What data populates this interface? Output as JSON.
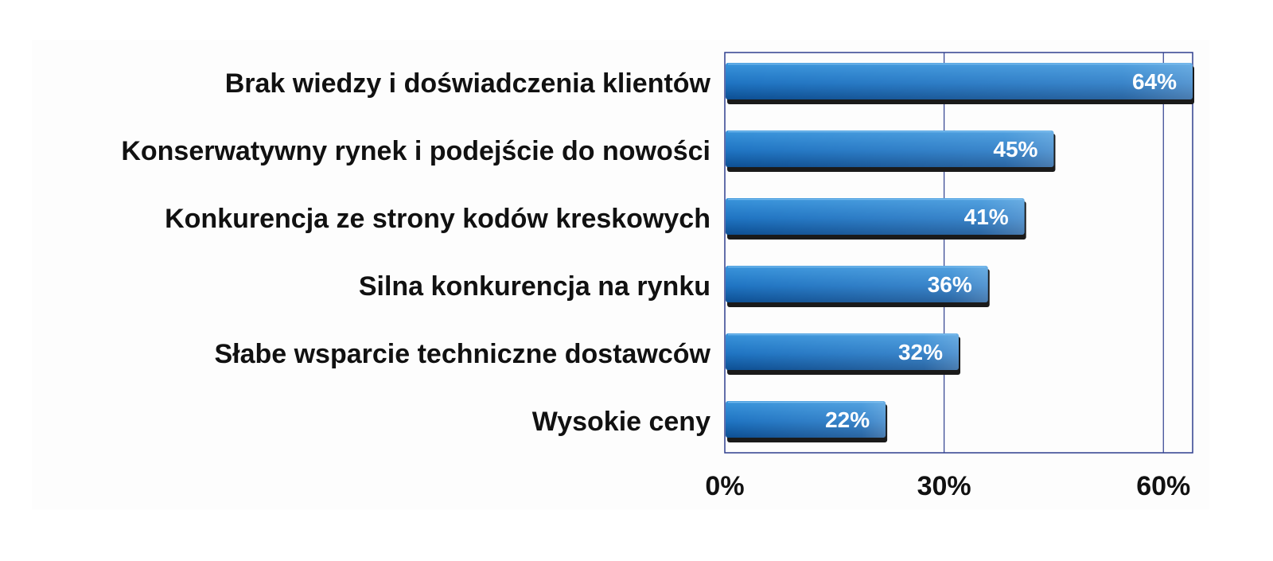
{
  "chart_data": {
    "type": "bar",
    "orientation": "horizontal",
    "categories": [
      "Brak wiedzy i doświadczenia klientów",
      "Konserwatywny rynek i podejście do nowości",
      "Konkurencja ze strony kodów kreskowych",
      "Silna konkurencja na rynku",
      "Słabe wsparcie techniczne dostawców",
      "Wysokie ceny"
    ],
    "values": [
      64,
      45,
      41,
      36,
      32,
      22
    ],
    "data_labels": [
      "64%",
      "45%",
      "41%",
      "36%",
      "32%",
      "22%"
    ],
    "xlim": [
      0,
      64
    ],
    "x_ticks": [
      0,
      30,
      60
    ],
    "x_tick_labels": [
      "0%",
      "30%",
      "60%"
    ],
    "grid": true,
    "legend": "none",
    "colors": {
      "bar_light": "#3a95dc",
      "bar_mid": "#1f74c2",
      "bar_dark": "#0d4f93",
      "bar_shadow": "#1a1a1a",
      "frame": "#2f3f8f",
      "gridline": "#2f3f8f",
      "plot_background": "#fdfdfd",
      "text": "#111111",
      "data_label": "#ffffff"
    }
  }
}
